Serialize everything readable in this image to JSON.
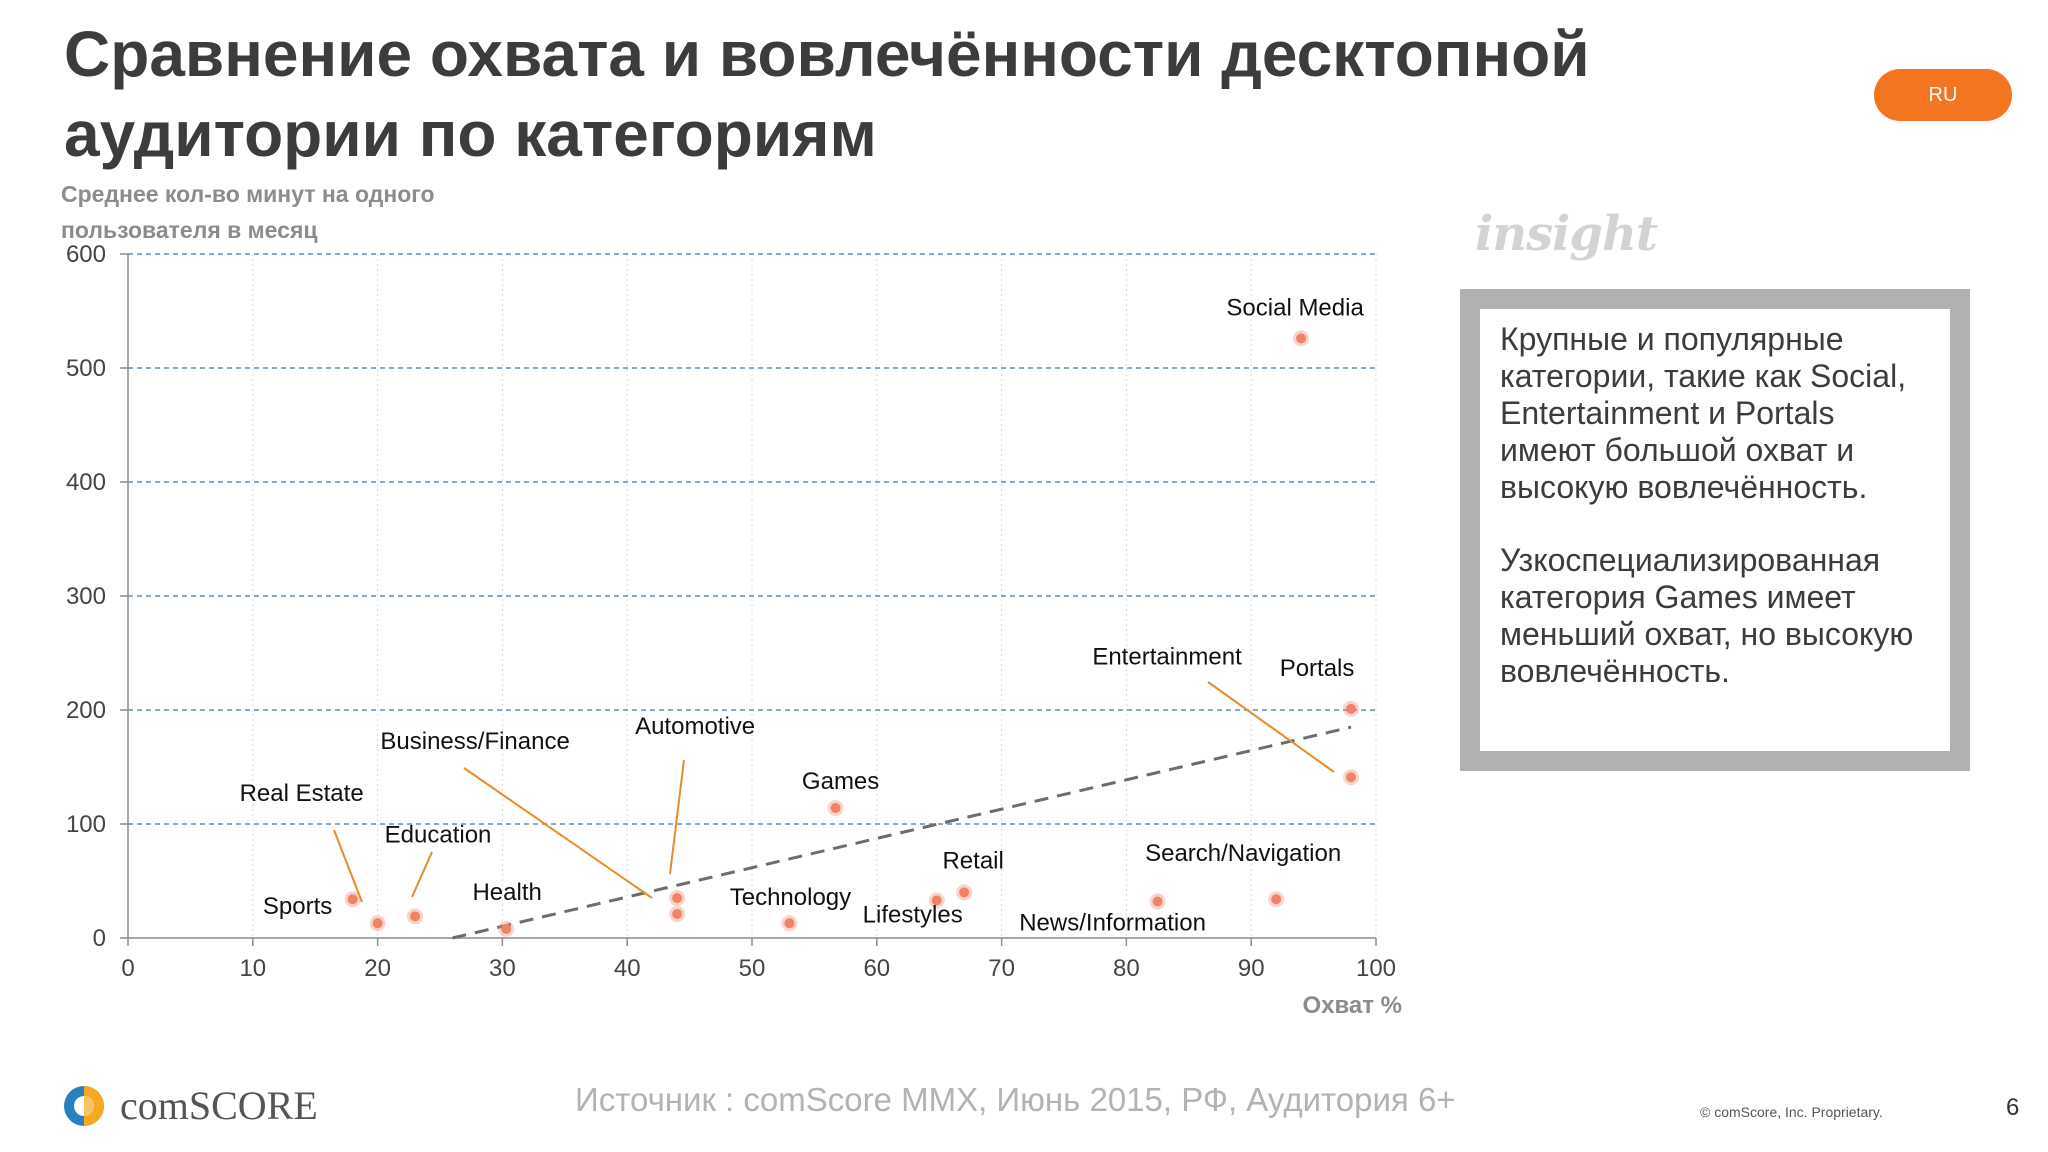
{
  "slide": {
    "title": "Сравнение охвата и вовлечённости десктопной аудитории по категориям",
    "lang_badge": "RU",
    "insight_logo": "insight",
    "insight_paragraphs": [
      "Крупные и популярные категории, такие как Social, Entertainment и Portals имеют большой охват и высокую вовлечённость.",
      "Узкоспециализированная категория Games имеет меньший охват, но высокую вовлечённость."
    ],
    "source": "Источник : comScore MMX, Июнь 2015, РФ, Аудитория 6+",
    "copyright": "© comScore, Inc. Proprietary.",
    "page_number": "6",
    "brand_name": "comSCORE",
    "brand_icon": "comscore-logo-icon"
  },
  "chart_data": {
    "type": "scatter",
    "ylabel": "Среднее кол-во минут на одного пользователя в месяц",
    "xlabel": "Охват %",
    "xlim": [
      0,
      100
    ],
    "ylim": [
      0,
      600
    ],
    "x_ticks": [
      0,
      10,
      20,
      30,
      40,
      50,
      60,
      70,
      80,
      90,
      100
    ],
    "y_ticks": [
      0,
      100,
      200,
      300,
      400,
      500,
      600
    ],
    "grid": true,
    "point_color": "#f0826a",
    "trendline": {
      "x": [
        26,
        98
      ],
      "y": [
        0,
        185
      ],
      "color": "#6d6d6d"
    },
    "points": [
      {
        "name": "Social Media",
        "x": 94,
        "y": 526
      },
      {
        "name": "Portals",
        "x": 98,
        "y": 201
      },
      {
        "name": "Entertainment",
        "x": 98,
        "y": 141
      },
      {
        "name": "Games",
        "x": 56.7,
        "y": 114
      },
      {
        "name": "Automotive",
        "x": 44,
        "y": 35
      },
      {
        "name": "Business/Finance",
        "x": 44,
        "y": 21
      },
      {
        "name": "Real Estate",
        "x": 18,
        "y": 34
      },
      {
        "name": "Sports",
        "x": 20,
        "y": 13
      },
      {
        "name": "Education",
        "x": 23,
        "y": 19
      },
      {
        "name": "Health",
        "x": 30.3,
        "y": 8
      },
      {
        "name": "Technology",
        "x": 53,
        "y": 13
      },
      {
        "name": "Lifestyles",
        "x": 64.8,
        "y": 33
      },
      {
        "name": "Retail",
        "x": 67,
        "y": 40
      },
      {
        "name": "News/Information",
        "x": 82.5,
        "y": 32
      },
      {
        "name": "Search/Navigation",
        "x": 92,
        "y": 34
      }
    ]
  }
}
